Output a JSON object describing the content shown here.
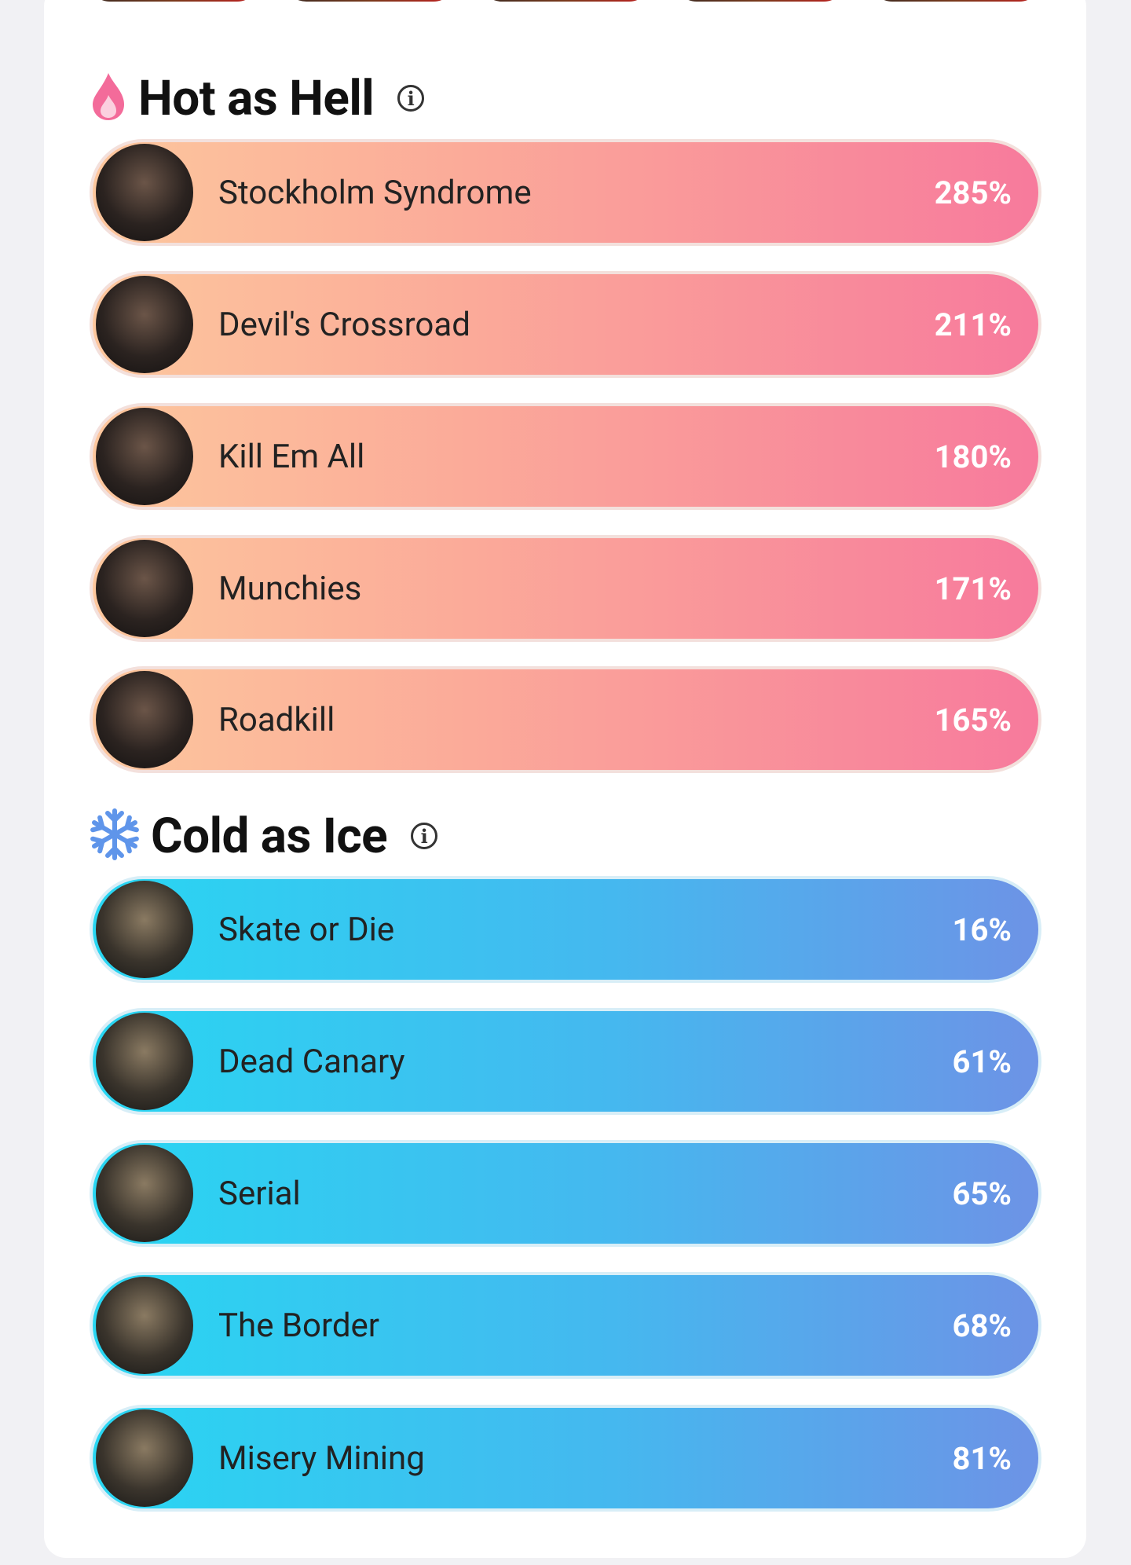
{
  "sections": [
    {
      "title": "Hot as Hell",
      "items": [
        {
          "name": "Stockholm Syndrome",
          "value": "285%"
        },
        {
          "name": "Devil's Crossroad",
          "value": "211%"
        },
        {
          "name": "Kill Em All",
          "value": "180%"
        },
        {
          "name": "Munchies",
          "value": "171%"
        },
        {
          "name": "Roadkill",
          "value": "165%"
        }
      ]
    },
    {
      "title": "Cold as Ice",
      "items": [
        {
          "name": "Skate or Die",
          "value": "16%"
        },
        {
          "name": "Dead Canary",
          "value": "61%"
        },
        {
          "name": "Serial",
          "value": "65%"
        },
        {
          "name": "The Border",
          "value": "68%"
        },
        {
          "name": "Misery Mining",
          "value": "81%"
        }
      ]
    }
  ]
}
